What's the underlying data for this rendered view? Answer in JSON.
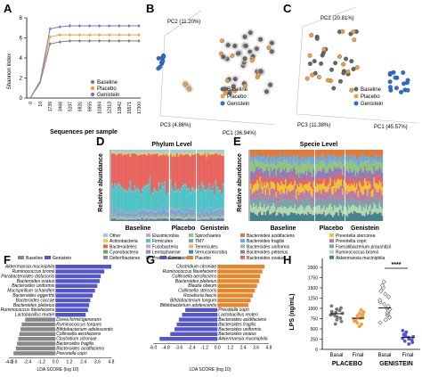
{
  "panels": {
    "A": {
      "label": "A",
      "ylabel": "Shannon Index",
      "xlabel": "Sequences per sample",
      "yticks": [
        "8",
        "6",
        "4",
        "2",
        "0"
      ],
      "xticks": [
        "0",
        "10",
        "1739",
        "3468",
        "5197",
        "6926",
        "8655",
        "10384",
        "12113",
        "13842",
        "15571",
        "17300"
      ],
      "legend": [
        "Baseline",
        "Placebo",
        "Genistein"
      ]
    },
    "B": {
      "label": "B",
      "pc1": "PC1 (36.94%)",
      "pc2": "PC2 (11.20%)",
      "pc3": "PC3 (4.86%)",
      "legend": [
        "Baseline",
        "Placebo",
        "Genistein"
      ]
    },
    "C": {
      "label": "C",
      "pc1": "PC1 (45.57%)",
      "pc2": "PC2 (20.81%)",
      "pc3": "PC3 (11.38%)",
      "legend": [
        "Baseline",
        "Placebo",
        "Genistein"
      ]
    },
    "D": {
      "label": "D",
      "title": "Phylum Level",
      "ylabel": "Relative abundance",
      "groups": [
        "Baseline",
        "Placebo",
        "Genistein"
      ],
      "legend": [
        "Other",
        "Actinobacteria",
        "Bacteroidetes",
        "Cyanobacteria",
        "Deferribacteres",
        "Elusimicrobia",
        "Firmicutes",
        "Fusobacteria",
        "Lentisphaerae",
        "Proteobacteria",
        "Spirochaetes",
        "TM7",
        "Tenericutes",
        "Verrucomicrobia"
      ]
    },
    "E": {
      "label": "E",
      "title": "Specie Level",
      "ylabel": "Relative abundance",
      "groups": [
        "Baseline",
        "Placebo",
        "Genistein"
      ],
      "legend": [
        "Bacteroides acidifaciens",
        "Bacteroides fragilis",
        "Bacteroides uniformis",
        "Bacteroides plebeius",
        "Bacteroides ovatus",
        "Prevotella stercorea",
        "Prevotella copri",
        "Faecalibacterium prausnitzii",
        "Ruminococcus bromii",
        "Akkermansia muciniphila"
      ]
    },
    "F": {
      "label": "F",
      "legend": [
        "Baseline",
        "Genistein"
      ],
      "xlabel": "LDA SCORE (log 10)",
      "xticks": [
        "-4.0",
        "-3.6",
        "-2.4",
        "-1.2",
        "0.0",
        "1.2",
        "2.4",
        "3.6",
        "4.8"
      ],
      "top": [
        "Akkermansia muciniphila",
        "Ruminococcus bromii",
        "Parabacteroides distasonis",
        "Bacteroides ovatus",
        "Bacteroides uniformis",
        "Mucispirillum schaedleri",
        "Bacteroides eggerthii",
        "Bacteroides caccae",
        "Bacteroides plebeius",
        "Ruminococcus flavefaciens",
        "Lactobacillus reuteri"
      ],
      "bottom": [
        "Dorea formicigenerans",
        "Ruminococcus torques",
        "Bifidobacterium adolescentis",
        "Collinsella aerofaciens",
        "Clostridium citroniae",
        "Bacteroides fragilis",
        "Bacteroides acidifaciens",
        "Prevotella copri"
      ]
    },
    "G": {
      "label": "G",
      "legend": [
        "Genistein",
        "Placebo"
      ],
      "xlabel": "LDA SCORE (log 10)",
      "xticks": [
        "-6.0",
        "-4.8",
        "-3.6",
        "-2.4",
        "-1.2",
        "0.0",
        "1.2",
        "2.4",
        "3.6",
        "4.8"
      ],
      "top": [
        "Clostridium citroniae",
        "Ruminococcus flavefaciens",
        "Collinsella aerofaciens",
        "Bacteroides plebeius",
        "Blautia obeum",
        "Collinsella stercoris",
        "Roseburia faecis",
        "Bifidobacterium longum",
        "Bifidobacterium adolescentis"
      ],
      "bottom": [
        "Prevotella copri",
        "Lactobacillus reuteri",
        "Bacteroides acidifaciens",
        "Bacteroides fragilis",
        "Bacteroides uniformis",
        "Bacteroides ovatus",
        "Akkermansia muciniphila"
      ]
    },
    "H": {
      "label": "H",
      "ylabel": "LPS (ng/mL)",
      "signif": "****",
      "yticks": [
        "2000",
        "1750",
        "1500",
        "1250",
        "1000",
        "750",
        "500",
        "250",
        "0"
      ],
      "xcats": [
        "Basal",
        "Final",
        "Basal",
        "Final"
      ],
      "groups": [
        "PLACEBO",
        "GENISTEIN"
      ]
    }
  },
  "chart_data": [
    {
      "type": "line",
      "panel": "A",
      "x": [
        0,
        10,
        1739,
        3468,
        5197,
        6926,
        8655,
        10384,
        12113,
        13842,
        15571,
        17300
      ],
      "ylim": [
        0,
        8
      ],
      "series": [
        {
          "name": "Baseline",
          "values": [
            0,
            1.5,
            5.4,
            5.6,
            5.7,
            5.7,
            5.7,
            5.7,
            5.7,
            5.7,
            5.7,
            5.7
          ]
        },
        {
          "name": "Placebo",
          "values": [
            0,
            1.6,
            6.1,
            6.3,
            6.3,
            6.3,
            6.3,
            6.3,
            6.3,
            6.3,
            6.3,
            6.3
          ]
        },
        {
          "name": "Genistein",
          "values": [
            0,
            1.7,
            6.9,
            7.1,
            7.2,
            7.2,
            7.2,
            7.2,
            7.2,
            7.2,
            7.2,
            7.2
          ]
        }
      ]
    },
    {
      "type": "scatter",
      "panel": "H",
      "ylim": [
        0,
        2000
      ],
      "series": [
        {
          "name": "PLACEBO Basal",
          "mean": 870,
          "values": [
            620,
            680,
            720,
            760,
            790,
            820,
            840,
            860,
            880,
            900,
            920,
            950,
            980,
            1010,
            1060
          ]
        },
        {
          "name": "PLACEBO Final",
          "mean": 760,
          "values": [
            560,
            610,
            650,
            690,
            720,
            740,
            760,
            780,
            800,
            820,
            850,
            880,
            910,
            960
          ]
        },
        {
          "name": "GENISTEIN Basal",
          "mean": 1010,
          "values": [
            650,
            720,
            780,
            830,
            870,
            900,
            940,
            980,
            1010,
            1050,
            1100,
            1150,
            1200,
            1280,
            1350,
            1420,
            1500,
            1560,
            1650
          ]
        },
        {
          "name": "GENISTEIN Final",
          "mean": 290,
          "values": [
            130,
            170,
            200,
            230,
            250,
            270,
            290,
            310,
            330,
            360,
            390,
            420,
            460
          ]
        }
      ]
    },
    {
      "type": "bar",
      "panel": "F",
      "orientation": "horizontal",
      "xlim": [
        -4.0,
        4.8
      ],
      "series": [
        {
          "name": "Genistein",
          "values": [
            4.8,
            4.2,
            3.9,
            3.8,
            3.6,
            3.4,
            3.2,
            3.0,
            2.9,
            2.8,
            2.6
          ]
        },
        {
          "name": "Baseline",
          "values": [
            -2.6,
            -2.9,
            -3.0,
            -3.1,
            -3.2,
            -3.3,
            -3.4,
            -3.6
          ]
        }
      ]
    },
    {
      "type": "bar",
      "panel": "G",
      "orientation": "horizontal",
      "xlim": [
        -6.0,
        4.8
      ],
      "series": [
        {
          "name": "Placebo",
          "values": [
            4.4,
            4.2,
            4.0,
            3.9,
            3.7,
            3.5,
            3.3,
            3.1,
            2.9
          ]
        },
        {
          "name": "Genistein",
          "values": [
            -3.0,
            -3.3,
            -3.6,
            -3.8,
            -4.0,
            -4.4,
            -5.4
          ]
        }
      ]
    }
  ]
}
